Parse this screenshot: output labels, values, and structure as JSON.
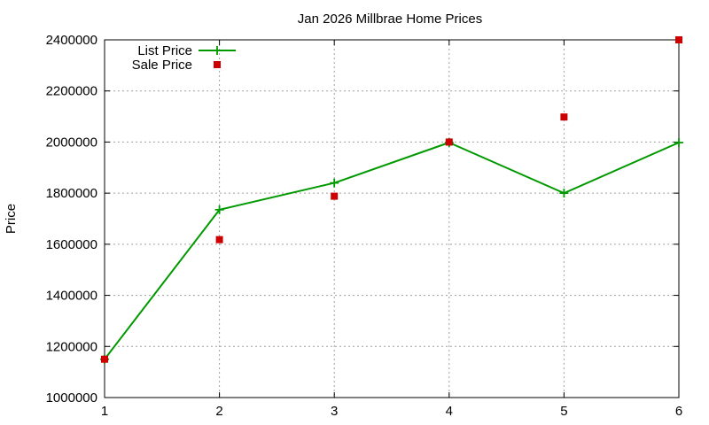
{
  "chart_data": {
    "type": "line",
    "title": "Jan 2026 Millbrae Home Prices",
    "xlabel": "",
    "ylabel": "Price",
    "x": [
      1,
      2,
      3,
      4,
      5,
      6
    ],
    "xlim": [
      1,
      6
    ],
    "ylim": [
      1000000,
      2400000
    ],
    "x_ticks": [
      "1",
      "2",
      "3",
      "4",
      "5",
      "6"
    ],
    "y_ticks": [
      "1000000",
      "1200000",
      "1400000",
      "1600000",
      "1800000",
      "2000000",
      "2200000",
      "2400000"
    ],
    "grid": true,
    "legend_position": "top-left",
    "series": [
      {
        "name": "List Price",
        "style": "line-with-plus-markers",
        "color": "#009900",
        "values": [
          1150000,
          1735000,
          1840000,
          1998000,
          1800000,
          1998000
        ]
      },
      {
        "name": "Sale Price",
        "style": "square-markers",
        "color": "#cc0000",
        "values": [
          1150000,
          1618000,
          1788000,
          2000000,
          2098000,
          2400000
        ]
      }
    ]
  }
}
